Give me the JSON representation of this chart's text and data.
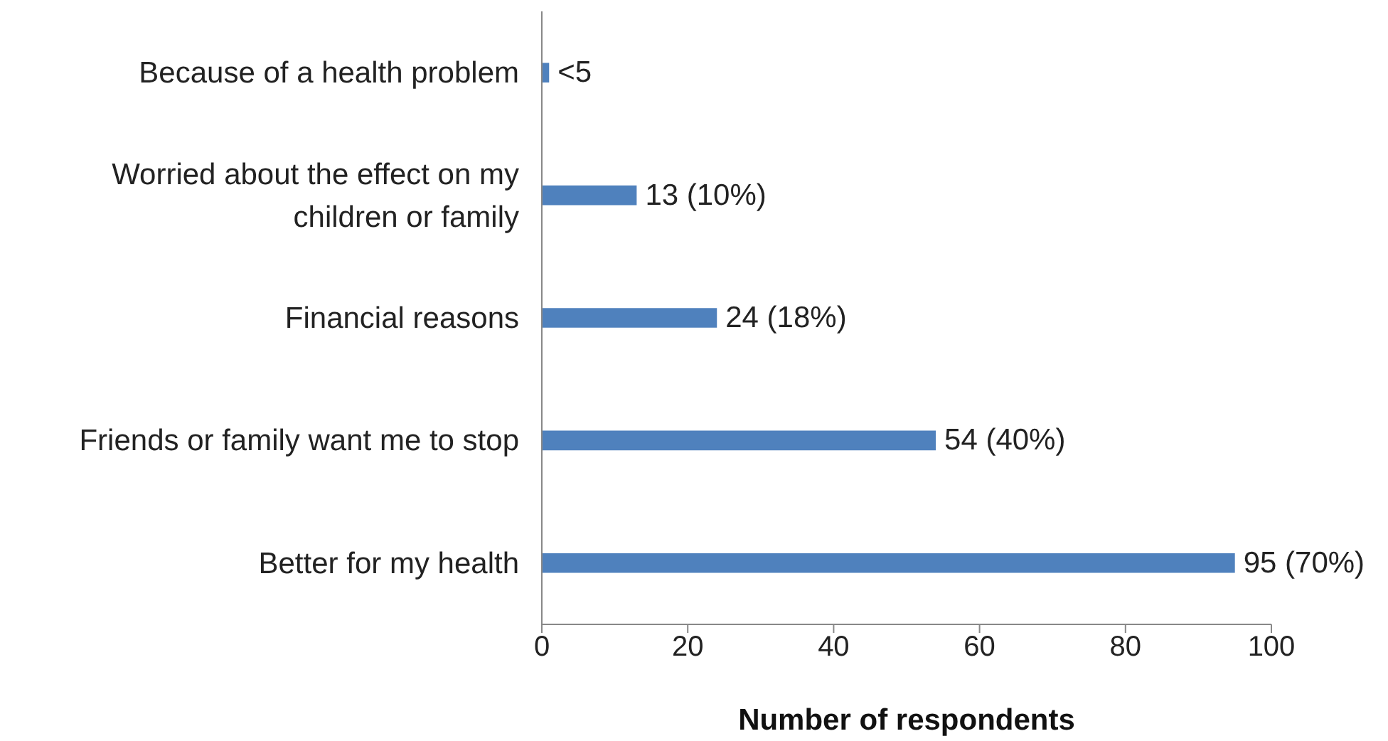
{
  "chart_data": {
    "type": "bar",
    "orientation": "horizontal",
    "xlabel": "Number of respondents",
    "categories": [
      "Because of a health problem",
      "Worried about the effect  on my children or family",
      "Financial reasons",
      "Friends or family want me to stop",
      "Better for my health"
    ],
    "values": [
      1,
      13,
      24,
      54,
      95
    ],
    "value_labels": [
      "<5",
      "13 (10%)",
      "24 (18%)",
      "54 (40%)",
      "95 (70%)"
    ],
    "color": "#4f81bd",
    "xlim": [
      0,
      100
    ],
    "xticks": [
      0,
      20,
      40,
      60,
      80,
      100
    ],
    "grid": false
  }
}
